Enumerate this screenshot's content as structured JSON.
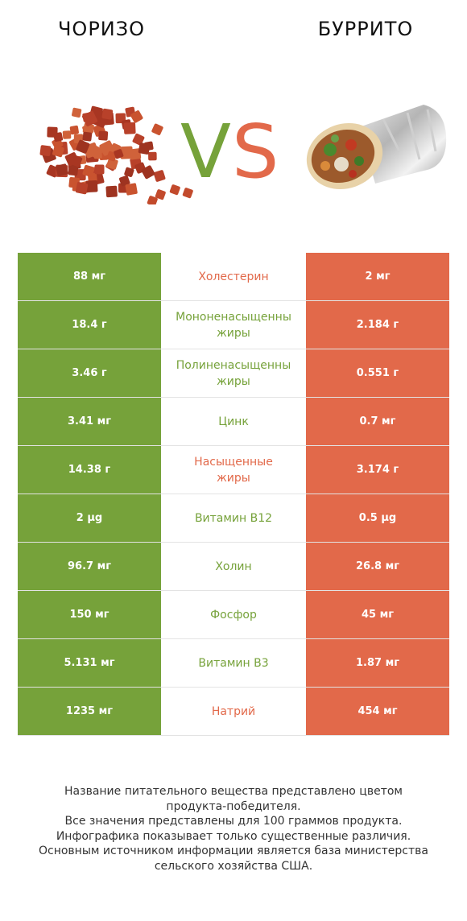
{
  "header": {
    "left_title": "ЧОРИЗО",
    "right_title": "БУРРИТО",
    "vs_text": "VS"
  },
  "colors": {
    "left": "#76a23a",
    "right": "#e2694a"
  },
  "rows": [
    {
      "left": "88 мг",
      "name": "Холестерин",
      "name_line2": "",
      "right": "2 мг",
      "winner_color": "#e2694a"
    },
    {
      "left": "18.4 г",
      "name": "Мононенасыщенны",
      "name_line2": "жиры",
      "right": "2.184 г",
      "winner_color": "#76a23a"
    },
    {
      "left": "3.46 г",
      "name": "Полиненасыщенны",
      "name_line2": "жиры",
      "right": "0.551 г",
      "winner_color": "#76a23a"
    },
    {
      "left": "3.41 мг",
      "name": "Цинк",
      "name_line2": "",
      "right": "0.7 мг",
      "winner_color": "#76a23a"
    },
    {
      "left": "14.38 г",
      "name": "Насыщенные",
      "name_line2": "жиры",
      "right": "3.174 г",
      "winner_color": "#e2694a"
    },
    {
      "left": "2 µg",
      "name": "Витамин B12",
      "name_line2": "",
      "right": "0.5 µg",
      "winner_color": "#76a23a"
    },
    {
      "left": "96.7 мг",
      "name": "Холин",
      "name_line2": "",
      "right": "26.8 мг",
      "winner_color": "#76a23a"
    },
    {
      "left": "150 мг",
      "name": "Фосфор",
      "name_line2": "",
      "right": "45 мг",
      "winner_color": "#76a23a"
    },
    {
      "left": "5.131 мг",
      "name": "Витамин B3",
      "name_line2": "",
      "right": "1.87 мг",
      "winner_color": "#76a23a"
    },
    {
      "left": "1235 мг",
      "name": "Натрий",
      "name_line2": "",
      "right": "454 мг",
      "winner_color": "#e2694a"
    }
  ],
  "footer": {
    "line1": "Название питательного вещества представлено цветом",
    "line2": "продукта-победителя.",
    "line3": "Все значения представлены для 100 граммов продукта.",
    "line4": "Инфографика показывает только существенные различия.",
    "line5": "Основным источником информации является база министерства",
    "line6": "сельского хозяйства США."
  }
}
